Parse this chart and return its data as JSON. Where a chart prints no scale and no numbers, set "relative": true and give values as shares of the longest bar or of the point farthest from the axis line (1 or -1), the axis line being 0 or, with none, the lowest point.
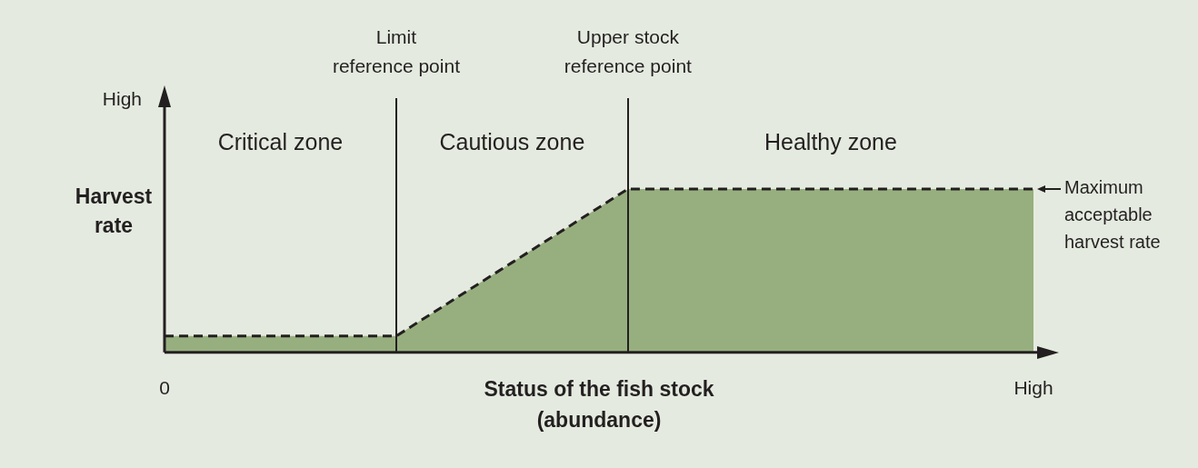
{
  "chart_data": {
    "type": "area",
    "relative": true,
    "xlabel": "Status of the fish stock\n(abundance)",
    "ylabel": "Harvest\nrate",
    "categories": [
      "0",
      null,
      null,
      null,
      null,
      null,
      null,
      null,
      null,
      null,
      null,
      null,
      null,
      null,
      null,
      "High"
    ],
    "series": [
      {
        "color": "#97af7f",
        "values": [
          0.1,
          0.1,
          0.1,
          0.1,
          0.1,
          0.325,
          0.55,
          0.775,
          1,
          1,
          1,
          1,
          1,
          1,
          1,
          1
        ]
      }
    ],
    "line_style": "dashed",
    "annotations": [
      "High",
      "Limit\nreference point",
      "Upper stock\nreference point",
      "Critical zone",
      "Cautious zone",
      "Healthy zone",
      "Maximum\nacceptable\nharvest rate"
    ],
    "grid": false,
    "legend": false
  }
}
